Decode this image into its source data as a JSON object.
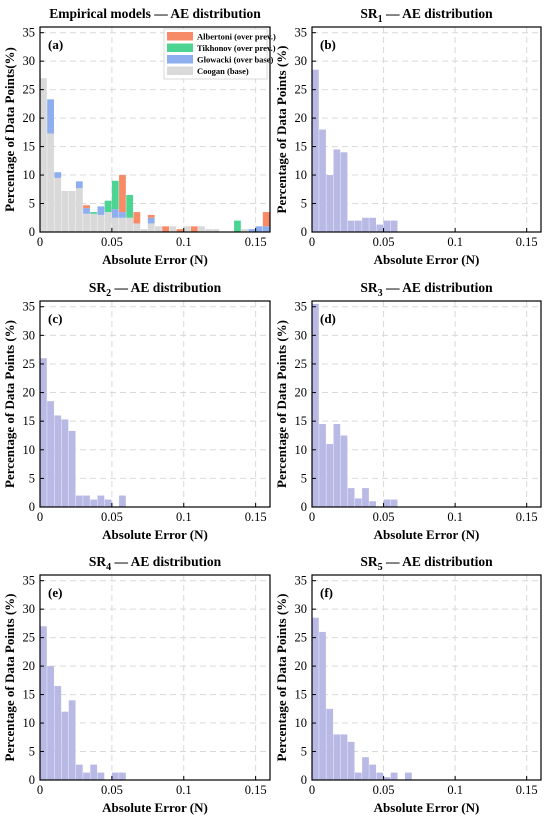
{
  "colors": {
    "coogan": "#d9d9d9",
    "glowacki": "#8eaef0",
    "tikhonov": "#4cd592",
    "albertoni": "#f78a67",
    "sr": "#b9b9e6",
    "grid": "#d9d9d9"
  },
  "chart_data": [
    {
      "type": "bar",
      "panel": "(a)",
      "title": {
        "main": "Empirical models — AE distribution"
      },
      "xlabel": "Absolute Error (N)",
      "ylabel": "Percentage of Data Points(%)",
      "xlim": [
        0,
        0.16
      ],
      "ylim": [
        0,
        36
      ],
      "xticks": [
        0,
        0.05,
        0.1,
        0.15
      ],
      "xticklabels": [
        "0",
        "0.05",
        "0.1",
        "0.15"
      ],
      "yticks": [
        0,
        5,
        10,
        15,
        20,
        25,
        30,
        35
      ],
      "bin_width": 0.005,
      "grid": true,
      "legend_position": "top-right",
      "series": [
        {
          "name": "Albertoni (over prev.)",
          "color_key": "albertoni",
          "values": [
            0,
            0,
            0,
            0,
            0,
            0,
            0.5,
            0,
            0,
            0,
            0,
            6.5,
            0,
            2,
            0,
            0.5,
            0,
            1,
            0,
            0.5,
            0,
            1,
            0,
            0,
            0,
            0,
            0,
            0,
            0,
            0,
            0,
            2.5
          ]
        },
        {
          "name": "Tikhonov (over prev.)",
          "color_key": "tikhonov",
          "values": [
            0,
            0,
            0,
            0,
            0,
            0,
            0,
            0.3,
            0,
            2,
            5,
            0,
            4,
            0,
            0,
            0,
            0,
            0,
            0,
            0,
            0,
            0,
            0,
            0,
            0,
            0,
            0,
            2,
            0,
            0,
            0,
            0
          ]
        },
        {
          "name": "Glowacki (over base)",
          "color_key": "glowacki",
          "values": [
            0,
            6,
            1,
            0,
            0,
            1.2,
            1,
            0,
            1.5,
            0,
            1.5,
            1,
            0,
            0,
            0,
            1,
            0,
            0,
            0,
            0,
            0,
            0,
            0,
            0,
            0,
            0,
            0,
            0,
            0,
            0.5,
            1,
            1
          ]
        },
        {
          "name": "Coogan (base)",
          "color_key": "coogan",
          "values": [
            27,
            17.3,
            9.5,
            7.2,
            7.2,
            7.7,
            3.2,
            3.2,
            3,
            3.5,
            2.5,
            2.5,
            2.5,
            1.5,
            0.5,
            1.5,
            1,
            0,
            1,
            0,
            1,
            0,
            1,
            0.5,
            0.5,
            0,
            0,
            0,
            0.5,
            0,
            0,
            0
          ]
        }
      ]
    },
    {
      "type": "bar",
      "panel": "(b)",
      "title": {
        "main": "SR",
        "sub": "1",
        "rest": " — AE distribution"
      },
      "xlabel": "Absolute Error (N)",
      "ylabel": "Percentage of Data Points (%)",
      "xlim": [
        0,
        0.16
      ],
      "ylim": [
        0,
        36
      ],
      "bin_width": 0.005,
      "grid": true,
      "xticks": [
        0,
        0.05,
        0.1,
        0.15
      ],
      "xticklabels": [
        "0",
        "0.05",
        "0.1",
        "0.15"
      ],
      "yticks": [
        0,
        5,
        10,
        15,
        20,
        25,
        30,
        35
      ],
      "values": [
        28.5,
        18,
        10,
        14.5,
        14,
        2,
        2,
        2.5,
        2.5,
        1.3,
        2,
        2
      ]
    },
    {
      "type": "bar",
      "panel": "(c)",
      "title": {
        "main": "SR",
        "sub": "2",
        "rest": " — AE distribution"
      },
      "xlabel": "Absolute Error (N)",
      "ylabel": "Percentage of Data Points (%)",
      "xlim": [
        0,
        0.16
      ],
      "ylim": [
        0,
        36
      ],
      "bin_width": 0.005,
      "grid": true,
      "xticks": [
        0,
        0.05,
        0.1,
        0.15
      ],
      "xticklabels": [
        "0",
        "0.05",
        "0.1",
        "0.15"
      ],
      "yticks": [
        0,
        5,
        10,
        15,
        20,
        25,
        30,
        35
      ],
      "values": [
        26,
        18.5,
        16,
        15.3,
        13.3,
        2,
        2,
        1.3,
        2,
        1.3,
        0,
        2
      ]
    },
    {
      "type": "bar",
      "panel": "(d)",
      "title": {
        "main": "SR",
        "sub": "3",
        "rest": " — AE distribution"
      },
      "xlabel": "Absolute Error (N)",
      "ylabel": "Percentage of Data Points (%)",
      "xlim": [
        0,
        0.16
      ],
      "ylim": [
        0,
        36
      ],
      "bin_width": 0.005,
      "grid": true,
      "xticks": [
        0,
        0.05,
        0.1,
        0.15
      ],
      "xticklabels": [
        "0",
        "0.05",
        "0.1",
        "0.15"
      ],
      "yticks": [
        0,
        5,
        10,
        15,
        20,
        25,
        30,
        35
      ],
      "values": [
        35.5,
        14.5,
        11,
        14.5,
        12.5,
        3.3,
        1.5,
        3.3,
        1,
        0,
        1.3,
        1.3
      ]
    },
    {
      "type": "bar",
      "panel": "(e)",
      "title": {
        "main": "SR",
        "sub": "4",
        "rest": " — AE distribution"
      },
      "xlabel": "Absolute Error (N)",
      "ylabel": "Percentage of Data Points (%)",
      "xlim": [
        0,
        0.16
      ],
      "ylim": [
        0,
        36
      ],
      "bin_width": 0.005,
      "grid": true,
      "xticks": [
        0,
        0.05,
        0.1,
        0.15
      ],
      "xticklabels": [
        "0",
        "0.05",
        "0.1",
        "0.15"
      ],
      "yticks": [
        0,
        5,
        10,
        15,
        20,
        25,
        30,
        35
      ],
      "values": [
        27,
        20,
        16.5,
        12,
        14,
        2.7,
        1.3,
        2.7,
        1.3,
        0,
        1.3,
        1.3
      ]
    },
    {
      "type": "bar",
      "panel": "(f)",
      "title": {
        "main": "SR",
        "sub": "5",
        "rest": " — AE distribution"
      },
      "xlabel": "Absolute Error (N)",
      "ylabel": "Percentage of Data Points (%)",
      "xlim": [
        0,
        0.16
      ],
      "ylim": [
        0,
        36
      ],
      "bin_width": 0.005,
      "grid": true,
      "xticks": [
        0,
        0.05,
        0.1,
        0.15
      ],
      "xticklabels": [
        "0",
        "0.05",
        "0.1",
        "0.15"
      ],
      "yticks": [
        0,
        5,
        10,
        15,
        20,
        25,
        30,
        35
      ],
      "values": [
        28.5,
        26,
        12.5,
        8,
        8,
        6.7,
        1.3,
        4,
        2.7,
        1.3,
        0.5,
        1.3,
        0,
        1.3
      ]
    }
  ]
}
